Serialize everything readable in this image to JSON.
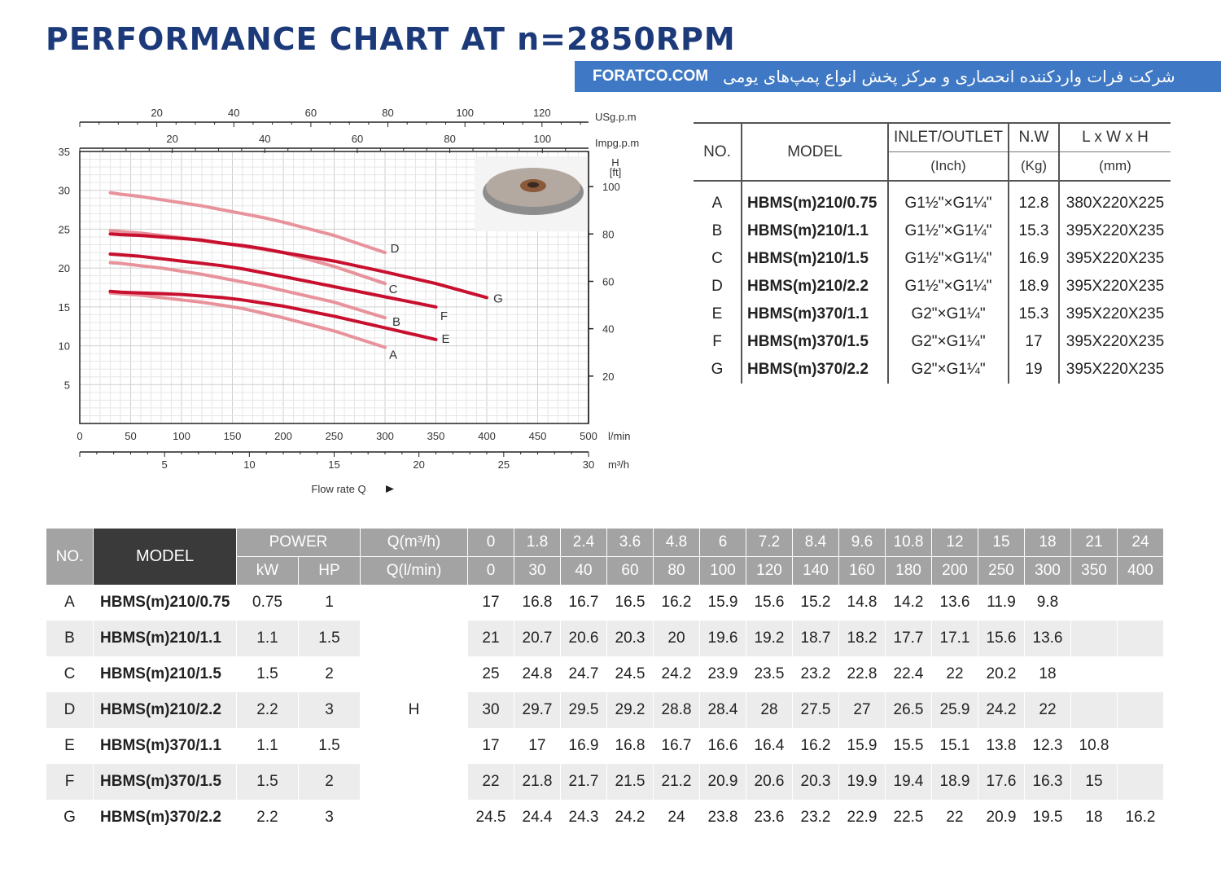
{
  "title": "PERFORMANCE CHART AT n=2850RPM",
  "banner": {
    "site": "FORATCO.COM",
    "text": "شرکت فرات واردکننده انحصاری و مرکز پخش انواع پمپ‌های یومی"
  },
  "colors": {
    "title": "#1c3a7a",
    "banner": "#3f78c4",
    "curve_light": "#e8939c",
    "curve_dark": "#c8102e"
  },
  "chart_data": {
    "type": "line",
    "x_unit_lmin": "l/min",
    "x_unit_m3h": "m³/h",
    "x_unit_usg": "USg.p.m",
    "x_unit_impg": "Impg.p.m",
    "y_unit_ft": "H\n[ft]",
    "xlabel": "Flow rate Q",
    "xlim": [
      0,
      500
    ],
    "ylim": [
      0,
      35
    ],
    "ticks_lmin": [
      "0",
      "50",
      "100",
      "150",
      "200",
      "250",
      "300",
      "350",
      "400",
      "450",
      "500"
    ],
    "ticks_m3h": [
      "5",
      "10",
      "15",
      "20",
      "25",
      "30"
    ],
    "ticks_usg": [
      "20",
      "40",
      "60",
      "80",
      "100",
      "120"
    ],
    "ticks_impg": [
      "20",
      "40",
      "60",
      "80",
      "100"
    ],
    "ticks_m": [
      "5",
      "10",
      "15",
      "20",
      "25",
      "30",
      "35"
    ],
    "ticks_ft": [
      "20",
      "40",
      "60",
      "80",
      "100"
    ],
    "grid": true,
    "series": [
      {
        "name": "A",
        "style": "light",
        "x": [
          30,
          40,
          60,
          80,
          100,
          120,
          140,
          160,
          180,
          200,
          250,
          300
        ],
        "y": [
          16.8,
          16.7,
          16.5,
          16.2,
          15.9,
          15.6,
          15.2,
          14.8,
          14.2,
          13.6,
          11.9,
          9.8
        ]
      },
      {
        "name": "B",
        "style": "light",
        "x": [
          30,
          40,
          60,
          80,
          100,
          120,
          140,
          160,
          180,
          200,
          250,
          300
        ],
        "y": [
          20.7,
          20.6,
          20.3,
          20,
          19.6,
          19.2,
          18.7,
          18.2,
          17.7,
          17.1,
          15.6,
          13.6
        ]
      },
      {
        "name": "C",
        "style": "light",
        "x": [
          30,
          40,
          60,
          80,
          100,
          120,
          140,
          160,
          180,
          200,
          250,
          300
        ],
        "y": [
          24.8,
          24.7,
          24.5,
          24.2,
          23.9,
          23.5,
          23.2,
          22.8,
          22.4,
          22,
          20.2,
          18
        ]
      },
      {
        "name": "D",
        "style": "light",
        "x": [
          30,
          40,
          60,
          80,
          100,
          120,
          140,
          160,
          180,
          200,
          250,
          300
        ],
        "y": [
          29.7,
          29.5,
          29.2,
          28.8,
          28.4,
          28,
          27.5,
          27,
          26.5,
          25.9,
          24.2,
          22
        ]
      },
      {
        "name": "E",
        "style": "dark",
        "x": [
          30,
          40,
          60,
          80,
          100,
          120,
          140,
          160,
          180,
          200,
          250,
          300,
          350
        ],
        "y": [
          17,
          16.9,
          16.8,
          16.7,
          16.6,
          16.4,
          16.2,
          15.9,
          15.5,
          15.1,
          13.8,
          12.3,
          10.8
        ]
      },
      {
        "name": "F",
        "style": "dark",
        "x": [
          30,
          40,
          60,
          80,
          100,
          120,
          140,
          160,
          180,
          200,
          250,
          300,
          350
        ],
        "y": [
          21.8,
          21.7,
          21.5,
          21.2,
          20.9,
          20.6,
          20.3,
          19.9,
          19.4,
          18.9,
          17.6,
          16.3,
          15
        ]
      },
      {
        "name": "G",
        "style": "dark",
        "x": [
          30,
          40,
          60,
          80,
          100,
          120,
          140,
          160,
          180,
          200,
          250,
          300,
          350,
          400
        ],
        "y": [
          24.4,
          24.3,
          24.2,
          24,
          23.8,
          23.6,
          23.2,
          22.9,
          22.5,
          22,
          20.9,
          19.5,
          18,
          16.2
        ]
      }
    ]
  },
  "spec_table": {
    "headers": {
      "no": "NO.",
      "model": "MODEL",
      "inlet": "INLET/OUTLET",
      "inlet_unit": "(Inch)",
      "nw": "N.W",
      "nw_unit": "(Kg)",
      "dim": "L x W x H",
      "dim_unit": "(mm)"
    },
    "rows": [
      {
        "no": "A",
        "model": "HBMS(m)210/0.75",
        "inlet": "G1½\"×G1¼\"",
        "nw": "12.8",
        "dim": "380X220X225"
      },
      {
        "no": "B",
        "model": "HBMS(m)210/1.1",
        "inlet": "G1½\"×G1¼\"",
        "nw": "15.3",
        "dim": "395X220X235"
      },
      {
        "no": "C",
        "model": "HBMS(m)210/1.5",
        "inlet": "G1½\"×G1¼\"",
        "nw": "16.9",
        "dim": "395X220X235"
      },
      {
        "no": "D",
        "model": "HBMS(m)210/2.2",
        "inlet": "G1½\"×G1¼\"",
        "nw": "18.9",
        "dim": "395X220X235"
      },
      {
        "no": "E",
        "model": "HBMS(m)370/1.1",
        "inlet": "G2\"×G1¼\"",
        "nw": "15.3",
        "dim": "395X220X235"
      },
      {
        "no": "F",
        "model": "HBMS(m)370/1.5",
        "inlet": "G2\"×G1¼\"",
        "nw": "17",
        "dim": "395X220X235"
      },
      {
        "no": "G",
        "model": "HBMS(m)370/2.2",
        "inlet": "G2\"×G1¼\"",
        "nw": "19",
        "dim": "395X220X235"
      }
    ]
  },
  "perf_table": {
    "headers": {
      "no": "NO.",
      "model": "MODEL",
      "power": "POWER",
      "kw": "kW",
      "hp": "HP",
      "q_m3h": "Q(m³/h)",
      "q_lmin": "Q(l/min)",
      "h": "H"
    },
    "q_m3h": [
      "0",
      "1.8",
      "2.4",
      "3.6",
      "4.8",
      "6",
      "7.2",
      "8.4",
      "9.6",
      "10.8",
      "12",
      "15",
      "18",
      "21",
      "24"
    ],
    "q_lmin": [
      "0",
      "30",
      "40",
      "60",
      "80",
      "100",
      "120",
      "140",
      "160",
      "180",
      "200",
      "250",
      "300",
      "350",
      "400"
    ],
    "rows": [
      {
        "no": "A",
        "model": "HBMS(m)210/0.75",
        "kw": "0.75",
        "hp": "1",
        "h": [
          "17",
          "16.8",
          "16.7",
          "16.5",
          "16.2",
          "15.9",
          "15.6",
          "15.2",
          "14.8",
          "14.2",
          "13.6",
          "11.9",
          "9.8",
          "",
          ""
        ]
      },
      {
        "no": "B",
        "model": "HBMS(m)210/1.1",
        "kw": "1.1",
        "hp": "1.5",
        "h": [
          "21",
          "20.7",
          "20.6",
          "20.3",
          "20",
          "19.6",
          "19.2",
          "18.7",
          "18.2",
          "17.7",
          "17.1",
          "15.6",
          "13.6",
          "",
          ""
        ]
      },
      {
        "no": "C",
        "model": "HBMS(m)210/1.5",
        "kw": "1.5",
        "hp": "2",
        "h": [
          "25",
          "24.8",
          "24.7",
          "24.5",
          "24.2",
          "23.9",
          "23.5",
          "23.2",
          "22.8",
          "22.4",
          "22",
          "20.2",
          "18",
          "",
          ""
        ]
      },
      {
        "no": "D",
        "model": "HBMS(m)210/2.2",
        "kw": "2.2",
        "hp": "3",
        "h": [
          "30",
          "29.7",
          "29.5",
          "29.2",
          "28.8",
          "28.4",
          "28",
          "27.5",
          "27",
          "26.5",
          "25.9",
          "24.2",
          "22",
          "",
          ""
        ]
      },
      {
        "no": "E",
        "model": "HBMS(m)370/1.1",
        "kw": "1.1",
        "hp": "1.5",
        "h": [
          "17",
          "17",
          "16.9",
          "16.8",
          "16.7",
          "16.6",
          "16.4",
          "16.2",
          "15.9",
          "15.5",
          "15.1",
          "13.8",
          "12.3",
          "10.8",
          ""
        ]
      },
      {
        "no": "F",
        "model": "HBMS(m)370/1.5",
        "kw": "1.5",
        "hp": "2",
        "h": [
          "22",
          "21.8",
          "21.7",
          "21.5",
          "21.2",
          "20.9",
          "20.6",
          "20.3",
          "19.9",
          "19.4",
          "18.9",
          "17.6",
          "16.3",
          "15",
          ""
        ]
      },
      {
        "no": "G",
        "model": "HBMS(m)370/2.2",
        "kw": "2.2",
        "hp": "3",
        "h": [
          "24.5",
          "24.4",
          "24.3",
          "24.2",
          "24",
          "23.8",
          "23.6",
          "23.2",
          "22.9",
          "22.5",
          "22",
          "20.9",
          "19.5",
          "18",
          "16.2"
        ]
      }
    ]
  }
}
